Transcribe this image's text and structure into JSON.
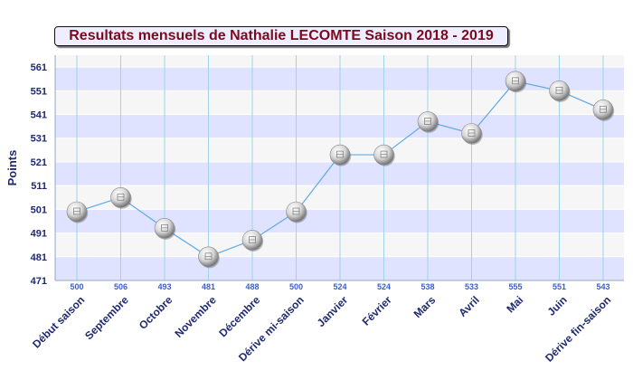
{
  "chart_data": {
    "type": "line",
    "title": "Resultats mensuels de Nathalie LECOMTE Saison 2018 - 2019",
    "ylabel": "Points",
    "xlabel": "",
    "categories": [
      "Début saison",
      "Septembre",
      "Octobre",
      "Novembre",
      "Décembre",
      "Dérive mi-saison",
      "Janvier",
      "Février",
      "Mars",
      "Avril",
      "Mai",
      "Juin",
      "Dérive fin-saison"
    ],
    "series": [
      {
        "values": [
          500,
          506,
          493,
          481,
          488,
          500,
          524,
          524,
          538,
          533,
          555,
          551,
          543
        ]
      }
    ],
    "ylim": [
      471,
      566
    ],
    "yticks": [
      471,
      481,
      491,
      501,
      511,
      521,
      531,
      541,
      551,
      561
    ],
    "grid": true,
    "colors": {
      "line": "#5ea8e8",
      "band": "#dfe3ff",
      "band_alt": "#f6f6f6",
      "vgrid": "#9fd3ea",
      "title": "#7b0a1d",
      "labels": "#1f2a70",
      "data_labels": "#3b5ec8"
    }
  }
}
